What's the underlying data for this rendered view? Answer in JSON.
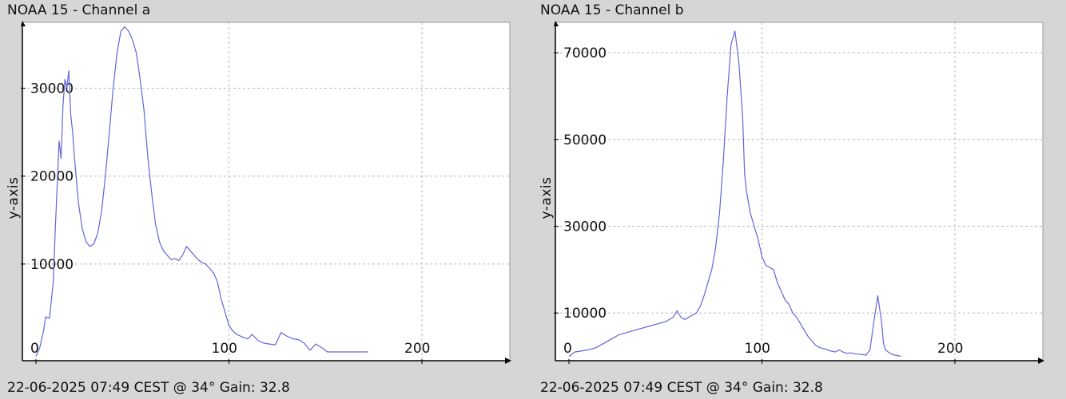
{
  "panels": [
    {
      "title": "NOAA 15 - Channel a",
      "footer": "22-06-2025 07:49 CEST @ 34° Gain: 32.8"
    },
    {
      "title": "NOAA 15 - Channel b",
      "footer": "22-06-2025 07:49 CEST @ 34° Gain: 32.8"
    }
  ],
  "chart_data": [
    {
      "type": "line",
      "title": "NOAA 15 - Channel a",
      "xlabel": "",
      "ylabel": "y-axis",
      "xlim": [
        0,
        255
      ],
      "ylim": [
        -1000,
        37500
      ],
      "x_ticks": [
        0,
        100,
        200
      ],
      "y_ticks": [
        10000,
        20000,
        30000
      ],
      "grid": true,
      "line_color": "#6464dc",
      "series": [
        {
          "x": [
            0,
            2,
            4,
            5,
            7,
            9,
            10,
            12,
            13,
            14,
            15,
            16,
            17,
            18,
            19,
            20,
            22,
            24,
            26,
            28,
            30,
            32,
            34,
            36,
            38,
            40,
            42,
            44,
            46,
            48,
            50,
            52,
            54,
            56,
            58,
            60,
            62,
            64,
            66,
            68,
            70,
            72,
            74,
            76,
            78,
            80,
            82,
            84,
            86,
            88,
            90,
            92,
            94,
            96,
            98,
            100,
            102,
            104,
            106,
            108,
            110,
            112,
            115,
            118,
            121,
            124,
            127,
            130,
            133,
            136,
            139,
            142,
            145,
            148,
            151,
            154,
            157,
            160,
            163,
            166,
            169,
            172
          ],
          "y": [
            -500,
            500,
            2500,
            4000,
            3800,
            8000,
            14000,
            24000,
            22000,
            28000,
            31000,
            30000,
            32000,
            27000,
            25000,
            22000,
            17000,
            14000,
            12500,
            12000,
            12300,
            13500,
            16000,
            20000,
            25000,
            30000,
            34000,
            36500,
            37000,
            36500,
            35500,
            34000,
            31000,
            27500,
            22000,
            18000,
            14500,
            12500,
            11500,
            11000,
            10500,
            10600,
            10400,
            11000,
            12000,
            11500,
            11000,
            10500,
            10200,
            10000,
            9500,
            9000,
            8000,
            6000,
            4500,
            3000,
            2400,
            2000,
            1800,
            1600,
            1500,
            2000,
            1300,
            1000,
            900,
            800,
            2200,
            1800,
            1500,
            1400,
            1000,
            200,
            900,
            500,
            0,
            0,
            0,
            0,
            0,
            0,
            0,
            0
          ]
        }
      ]
    },
    {
      "type": "line",
      "title": "NOAA 15 - Channel b",
      "xlabel": "",
      "ylabel": "y-axis",
      "xlim": [
        0,
        255
      ],
      "ylim": [
        -1000,
        77000
      ],
      "x_ticks": [
        0,
        100,
        200
      ],
      "y_ticks": [
        10000,
        30000,
        50000,
        70000
      ],
      "grid": true,
      "line_color": "#6464dc",
      "series": [
        {
          "x": [
            0,
            3,
            6,
            10,
            14,
            18,
            22,
            26,
            30,
            34,
            38,
            42,
            46,
            50,
            54,
            56,
            58,
            60,
            62,
            64,
            66,
            68,
            70,
            72,
            74,
            76,
            78,
            80,
            82,
            84,
            86,
            88,
            90,
            91,
            92,
            94,
            96,
            98,
            100,
            102,
            104,
            106,
            108,
            110,
            112,
            114,
            116,
            118,
            120,
            122,
            124,
            126,
            128,
            130,
            132,
            134,
            136,
            138,
            140,
            142,
            144,
            146,
            148,
            150,
            152,
            154,
            156,
            158,
            160,
            162,
            163,
            164,
            166,
            168,
            170,
            172
          ],
          "y": [
            0,
            1000,
            1200,
            1500,
            2000,
            3000,
            4000,
            5000,
            5500,
            6000,
            6500,
            7000,
            7500,
            8000,
            9000,
            10500,
            9000,
            8500,
            9000,
            9500,
            10000,
            11500,
            14000,
            17000,
            20000,
            25000,
            33000,
            45000,
            60000,
            72000,
            75000,
            68000,
            55000,
            42000,
            38000,
            33000,
            30000,
            27000,
            23000,
            21000,
            20500,
            20000,
            17000,
            15000,
            13000,
            12000,
            10000,
            9000,
            7500,
            6000,
            4500,
            3500,
            2500,
            2000,
            1800,
            1500,
            1200,
            1000,
            1500,
            1000,
            700,
            800,
            600,
            500,
            400,
            300,
            1500,
            8000,
            14000,
            8000,
            3000,
            1500,
            800,
            400,
            200,
            0
          ]
        }
      ]
    }
  ]
}
